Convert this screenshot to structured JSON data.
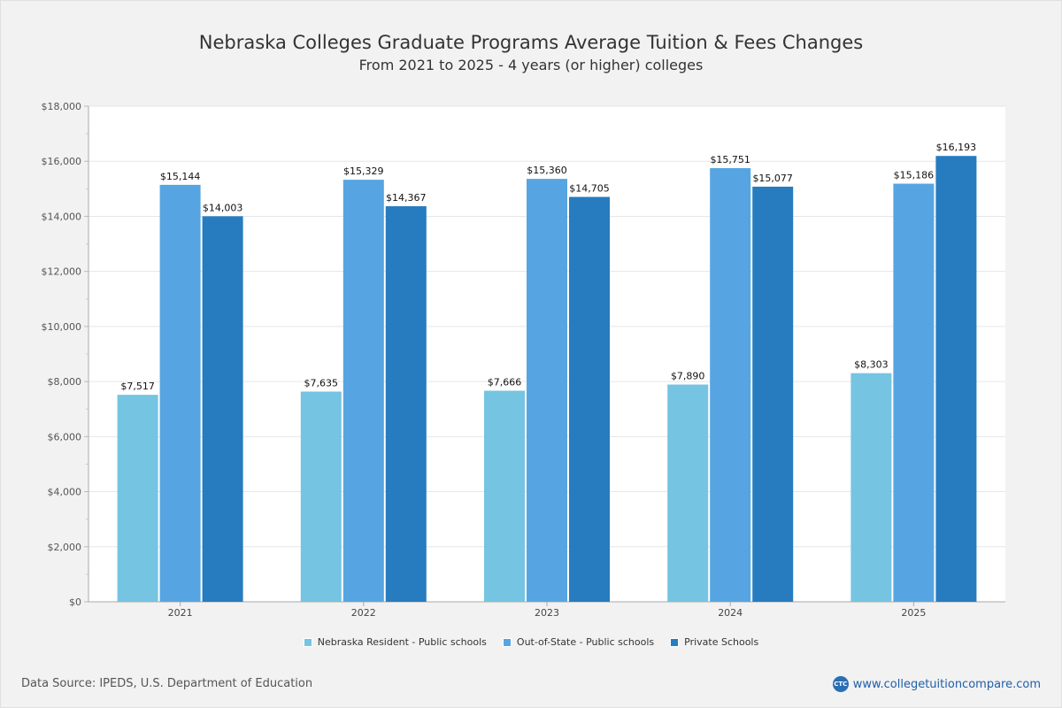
{
  "chart_data": {
    "type": "bar",
    "title": "Nebraska Colleges Graduate Programs Average Tuition & Fees Changes",
    "subtitle": "From 2021 to 2025 - 4 years (or higher) colleges",
    "xlabel": "",
    "ylabel": "",
    "categories": [
      "2021",
      "2022",
      "2023",
      "2024",
      "2025"
    ],
    "ylim": [
      0,
      18000
    ],
    "yticks": [
      0,
      2000,
      4000,
      6000,
      8000,
      10000,
      12000,
      14000,
      16000,
      18000
    ],
    "ytick_labels": [
      "$0",
      "$2,000",
      "$4,000",
      "$6,000",
      "$8,000",
      "$10,000",
      "$12,000",
      "$14,000",
      "$16,000",
      "$18,000"
    ],
    "grid": true,
    "legend_position": "bottom",
    "series": [
      {
        "name": "Nebraska Resident - Public schools",
        "color": "#74c4e2",
        "values": [
          7517,
          7635,
          7666,
          7890,
          8303
        ],
        "labels": [
          "$7,517",
          "$7,635",
          "$7,666",
          "$7,890",
          "$8,303"
        ]
      },
      {
        "name": "Out-of-State - Public schools",
        "color": "#56a5e2",
        "values": [
          15144,
          15329,
          15360,
          15751,
          15186
        ],
        "labels": [
          "$15,144",
          "$15,329",
          "$15,360",
          "$15,751",
          "$15,186"
        ]
      },
      {
        "name": "Private Schools",
        "color": "#267cbe",
        "values": [
          14003,
          14367,
          14705,
          15077,
          16193
        ],
        "labels": [
          "$14,003",
          "$14,367",
          "$14,705",
          "$15,077",
          "$16,193"
        ]
      }
    ]
  },
  "footer": {
    "source": "Data Source: IPEDS, U.S. Department of Education",
    "site": "www.collegetuitioncompare.com",
    "logo_text": "CTC"
  }
}
